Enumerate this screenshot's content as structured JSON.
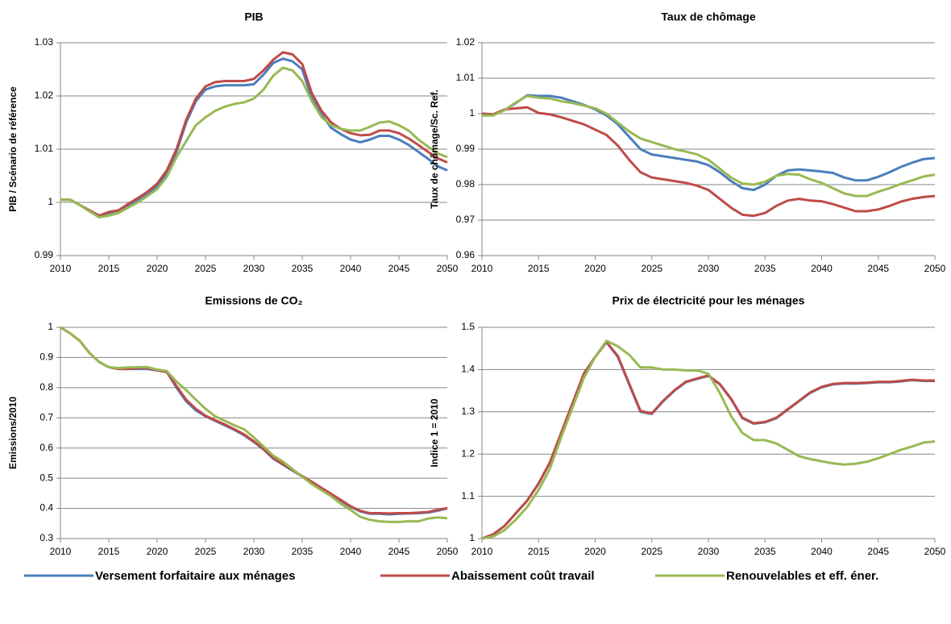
{
  "chart_data": [
    {
      "type": "line",
      "title": "PIB",
      "ylabel": "PIB / Scénario de référence",
      "x": [
        2010,
        2011,
        2012,
        2013,
        2014,
        2015,
        2016,
        2017,
        2018,
        2019,
        2020,
        2021,
        2022,
        2023,
        2024,
        2025,
        2026,
        2027,
        2028,
        2029,
        2030,
        2031,
        2032,
        2033,
        2034,
        2035,
        2036,
        2037,
        2038,
        2039,
        2040,
        2041,
        2042,
        2043,
        2044,
        2045,
        2046,
        2047,
        2048,
        2049,
        2050
      ],
      "xlim": [
        2010,
        2050
      ],
      "xticks": [
        2010,
        2015,
        2020,
        2025,
        2030,
        2035,
        2040,
        2045,
        2050
      ],
      "ylim": [
        0.99,
        1.03
      ],
      "yticks": [
        0.99,
        1,
        1.01,
        1.02,
        1.03
      ],
      "grid": true,
      "series": [
        {
          "name": "Versement forfaitaire aux ménages",
          "color": "#4a7ebb",
          "values": [
            1.0005,
            1.0005,
            0.9995,
            0.9985,
            0.9975,
            0.998,
            0.9985,
            0.9995,
            1.0005,
            1.0015,
            1.003,
            1.0055,
            1.0095,
            1.015,
            1.019,
            1.0212,
            1.0218,
            1.022,
            1.022,
            1.022,
            1.0222,
            1.024,
            1.0262,
            1.027,
            1.0265,
            1.025,
            1.0195,
            1.0165,
            1.014,
            1.0128,
            1.0118,
            1.0113,
            1.0118,
            1.0125,
            1.0125,
            1.0118,
            1.0108,
            1.0095,
            1.0082,
            1.0068,
            1.006
          ]
        },
        {
          "name": "Abaissement coût travail",
          "color": "#be4b48",
          "values": [
            1.0005,
            1.0005,
            0.9995,
            0.9985,
            0.9975,
            0.9982,
            0.9985,
            0.9997,
            1.0008,
            1.002,
            1.0035,
            1.006,
            1.01,
            1.0155,
            1.0195,
            1.0218,
            1.0226,
            1.0228,
            1.0228,
            1.0228,
            1.0232,
            1.0248,
            1.0268,
            1.0282,
            1.0278,
            1.026,
            1.0205,
            1.0172,
            1.015,
            1.0138,
            1.013,
            1.0126,
            1.0127,
            1.0135,
            1.0135,
            1.013,
            1.012,
            1.0108,
            1.0095,
            1.0083,
            1.0075
          ]
        },
        {
          "name": "Renouvelables et eff. éner.",
          "color": "#98b954",
          "values": [
            1.0005,
            1.0005,
            0.9995,
            0.9983,
            0.9972,
            0.9975,
            0.998,
            0.999,
            1,
            1.0012,
            1.0025,
            1.0048,
            1.0085,
            1.0115,
            1.0145,
            1.016,
            1.0172,
            1.018,
            1.0185,
            1.0188,
            1.0195,
            1.0212,
            1.0238,
            1.0253,
            1.0248,
            1.0228,
            1.019,
            1.016,
            1.0145,
            1.0138,
            1.0135,
            1.0135,
            1.0142,
            1.015,
            1.0152,
            1.0145,
            1.0135,
            1.0118,
            1.0105,
            1.0092,
            1.0085
          ]
        }
      ]
    },
    {
      "type": "line",
      "title": "Taux de chômage",
      "ylabel": "Taux de chômage/Sc. Ref.",
      "x": [
        2010,
        2011,
        2012,
        2013,
        2014,
        2015,
        2016,
        2017,
        2018,
        2019,
        2020,
        2021,
        2022,
        2023,
        2024,
        2025,
        2026,
        2027,
        2028,
        2029,
        2030,
        2031,
        2032,
        2033,
        2034,
        2035,
        2036,
        2037,
        2038,
        2039,
        2040,
        2041,
        2042,
        2043,
        2044,
        2045,
        2046,
        2047,
        2048,
        2049,
        2050
      ],
      "xlim": [
        2010,
        2050
      ],
      "xticks": [
        2010,
        2015,
        2020,
        2025,
        2030,
        2035,
        2040,
        2045,
        2050
      ],
      "ylim": [
        0.96,
        1.02
      ],
      "yticks": [
        0.96,
        0.97,
        0.98,
        0.99,
        1,
        1.01,
        1.02
      ],
      "grid": true,
      "series": [
        {
          "color": "#4a7ebb",
          "values": [
            1,
            0.9998,
            1.001,
            1.003,
            1.0052,
            1.005,
            1.005,
            1.0045,
            1.0035,
            1.0025,
            1.0012,
            0.9995,
            0.997,
            0.9935,
            0.99,
            0.9885,
            0.988,
            0.9875,
            0.987,
            0.9865,
            0.9855,
            0.9835,
            0.981,
            0.979,
            0.9785,
            0.98,
            0.9825,
            0.984,
            0.9843,
            0.984,
            0.9837,
            0.9833,
            0.982,
            0.9812,
            0.9812,
            0.9822,
            0.9835,
            0.985,
            0.9862,
            0.9872,
            0.9875
          ]
        },
        {
          "color": "#be4b48",
          "values": [
            1,
            0.9998,
            1.0012,
            1.0015,
            1.0018,
            1.0002,
            0.9998,
            0.999,
            0.998,
            0.997,
            0.9955,
            0.994,
            0.991,
            0.987,
            0.9835,
            0.982,
            0.9815,
            0.981,
            0.9805,
            0.9797,
            0.9785,
            0.976,
            0.9735,
            0.9715,
            0.9712,
            0.972,
            0.974,
            0.9755,
            0.976,
            0.9755,
            0.9753,
            0.9745,
            0.9735,
            0.9725,
            0.9725,
            0.973,
            0.974,
            0.9752,
            0.976,
            0.9765,
            0.9768
          ]
        },
        {
          "color": "#98b954",
          "values": [
            0.9995,
            0.9995,
            1.001,
            1.0032,
            1.005,
            1.0045,
            1.0043,
            1.0035,
            1.003,
            1.0023,
            1.0015,
            1,
            0.9975,
            0.995,
            0.993,
            0.992,
            0.991,
            0.99,
            0.9893,
            0.9885,
            0.987,
            0.9845,
            0.982,
            0.9803,
            0.98,
            0.9808,
            0.9825,
            0.983,
            0.9828,
            0.9815,
            0.9805,
            0.979,
            0.9775,
            0.9768,
            0.9768,
            0.978,
            0.979,
            0.9802,
            0.9812,
            0.9823,
            0.9828
          ]
        }
      ]
    },
    {
      "type": "line",
      "title": "Emissions  de CO₂",
      "ylabel": "Emissions/2010",
      "x": [
        2010,
        2011,
        2012,
        2013,
        2014,
        2015,
        2016,
        2017,
        2018,
        2019,
        2020,
        2021,
        2022,
        2023,
        2024,
        2025,
        2026,
        2027,
        2028,
        2029,
        2030,
        2031,
        2032,
        2033,
        2034,
        2035,
        2036,
        2037,
        2038,
        2039,
        2040,
        2041,
        2042,
        2043,
        2044,
        2045,
        2046,
        2047,
        2048,
        2049,
        2050
      ],
      "xlim": [
        2010,
        2050
      ],
      "xticks": [
        2010,
        2015,
        2020,
        2025,
        2030,
        2035,
        2040,
        2045,
        2050
      ],
      "ylim": [
        0.3,
        1
      ],
      "yticks": [
        0.3,
        0.4,
        0.5,
        0.6,
        0.7,
        0.8,
        0.9,
        1
      ],
      "grid": true,
      "series": [
        {
          "color": "#4a7ebb",
          "values": [
            1,
            0.98,
            0.955,
            0.915,
            0.885,
            0.868,
            0.862,
            0.862,
            0.862,
            0.862,
            0.857,
            0.852,
            0.8,
            0.755,
            0.725,
            0.705,
            0.69,
            0.675,
            0.66,
            0.642,
            0.62,
            0.595,
            0.565,
            0.545,
            0.525,
            0.505,
            0.485,
            0.465,
            0.445,
            0.425,
            0.405,
            0.39,
            0.382,
            0.382,
            0.38,
            0.382,
            0.383,
            0.384,
            0.386,
            0.392,
            0.4
          ]
        },
        {
          "color": "#be4b48",
          "values": [
            1,
            0.98,
            0.955,
            0.915,
            0.885,
            0.868,
            0.862,
            0.862,
            0.865,
            0.865,
            0.858,
            0.852,
            0.805,
            0.76,
            0.73,
            0.707,
            0.692,
            0.678,
            0.662,
            0.645,
            0.622,
            0.597,
            0.567,
            0.547,
            0.527,
            0.507,
            0.488,
            0.468,
            0.448,
            0.428,
            0.407,
            0.392,
            0.384,
            0.384,
            0.383,
            0.384,
            0.384,
            0.386,
            0.388,
            0.395,
            0.401
          ]
        },
        {
          "color": "#98b954",
          "values": [
            1,
            0.98,
            0.955,
            0.915,
            0.885,
            0.868,
            0.865,
            0.867,
            0.868,
            0.868,
            0.86,
            0.855,
            0.82,
            0.792,
            0.76,
            0.73,
            0.705,
            0.69,
            0.675,
            0.662,
            0.635,
            0.605,
            0.575,
            0.555,
            0.53,
            0.505,
            0.48,
            0.46,
            0.44,
            0.415,
            0.395,
            0.372,
            0.362,
            0.357,
            0.355,
            0.355,
            0.357,
            0.357,
            0.366,
            0.37,
            0.367
          ]
        }
      ]
    },
    {
      "type": "line",
      "title": "Prix de électricité pour les ménages",
      "ylabel": "Indice 1 = 2010",
      "x": [
        2010,
        2011,
        2012,
        2013,
        2014,
        2015,
        2016,
        2017,
        2018,
        2019,
        2020,
        2021,
        2022,
        2023,
        2024,
        2025,
        2026,
        2027,
        2028,
        2029,
        2030,
        2031,
        2032,
        2033,
        2034,
        2035,
        2036,
        2037,
        2038,
        2039,
        2040,
        2041,
        2042,
        2043,
        2044,
        2045,
        2046,
        2047,
        2048,
        2049,
        2050
      ],
      "xlim": [
        2010,
        2050
      ],
      "xticks": [
        2010,
        2015,
        2020,
        2025,
        2030,
        2035,
        2040,
        2045,
        2050
      ],
      "ylim": [
        1,
        1.5
      ],
      "yticks": [
        1,
        1.1,
        1.2,
        1.3,
        1.4,
        1.5
      ],
      "grid": true,
      "series": [
        {
          "color": "#4a7ebb",
          "values": [
            1,
            1.01,
            1.03,
            1.06,
            1.09,
            1.13,
            1.18,
            1.25,
            1.32,
            1.39,
            1.43,
            1.465,
            1.43,
            1.365,
            1.3,
            1.295,
            1.325,
            1.35,
            1.37,
            1.378,
            1.385,
            1.365,
            1.33,
            1.285,
            1.272,
            1.275,
            1.285,
            1.305,
            1.325,
            1.345,
            1.358,
            1.365,
            1.367,
            1.367,
            1.368,
            1.37,
            1.37,
            1.372,
            1.375,
            1.373,
            1.373
          ]
        },
        {
          "color": "#be4b48",
          "values": [
            1,
            1.01,
            1.03,
            1.06,
            1.09,
            1.13,
            1.18,
            1.25,
            1.32,
            1.39,
            1.43,
            1.465,
            1.432,
            1.367,
            1.302,
            1.296,
            1.326,
            1.351,
            1.371,
            1.379,
            1.386,
            1.366,
            1.331,
            1.286,
            1.273,
            1.276,
            1.286,
            1.306,
            1.326,
            1.346,
            1.359,
            1.366,
            1.368,
            1.368,
            1.369,
            1.371,
            1.371,
            1.373,
            1.376,
            1.374,
            1.374
          ]
        },
        {
          "color": "#98b954",
          "values": [
            1,
            1.005,
            1.02,
            1.045,
            1.075,
            1.115,
            1.165,
            1.24,
            1.31,
            1.38,
            1.43,
            1.468,
            1.455,
            1.435,
            1.405,
            1.405,
            1.4,
            1.4,
            1.398,
            1.398,
            1.39,
            1.345,
            1.29,
            1.25,
            1.233,
            1.233,
            1.225,
            1.21,
            1.195,
            1.188,
            1.183,
            1.178,
            1.175,
            1.177,
            1.182,
            1.19,
            1.2,
            1.21,
            1.218,
            1.227,
            1.23
          ]
        }
      ]
    }
  ]
}
